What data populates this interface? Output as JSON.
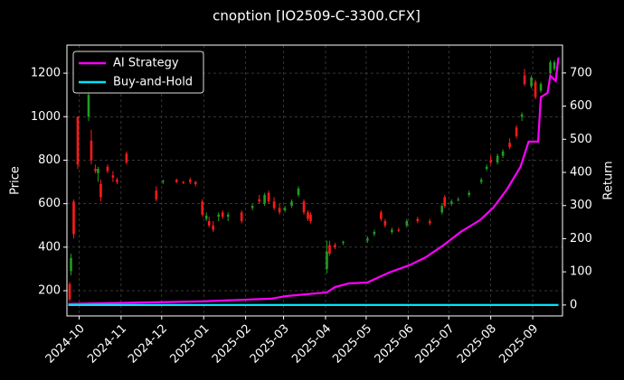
{
  "chart_data": {
    "type": "candlestick",
    "title": "cnoption [IO2509-C-3300.CFX]",
    "ylabel": "Price",
    "y2label": "Return",
    "grid": true,
    "legend": "upper left",
    "up_color": "#1f9e1f",
    "down_color": "#ff1a1a",
    "xlim": [
      -9,
      357
    ],
    "xticks": [
      {
        "value": 0,
        "label": "2024-10"
      },
      {
        "value": 31,
        "label": "2024-11"
      },
      {
        "value": 61,
        "label": "2024-12"
      },
      {
        "value": 92,
        "label": "2025-01"
      },
      {
        "value": 123,
        "label": "2025-02"
      },
      {
        "value": 151,
        "label": "2025-03"
      },
      {
        "value": 182,
        "label": "2025-04"
      },
      {
        "value": 212,
        "label": "2025-05"
      },
      {
        "value": 243,
        "label": "2025-06"
      },
      {
        "value": 273,
        "label": "2025-07"
      },
      {
        "value": 304,
        "label": "2025-08"
      },
      {
        "value": 335,
        "label": "2025-09"
      }
    ],
    "ylim": [
      84,
      1329
    ],
    "yticks": [
      200,
      400,
      600,
      800,
      1000,
      1200
    ],
    "y2lim": [
      -33,
      784
    ],
    "y2ticks": [
      0,
      100,
      200,
      300,
      400,
      500,
      600,
      700
    ],
    "candles": {
      "x": [
        -7,
        -6,
        -4,
        -1,
        7,
        9,
        12,
        14,
        16,
        21,
        25,
        28,
        35,
        57,
        62,
        72,
        77,
        82,
        86,
        91,
        94,
        96,
        99,
        103,
        106,
        110,
        120,
        128,
        133,
        137,
        140,
        144,
        148,
        152,
        157,
        162,
        166,
        169,
        171,
        183,
        185,
        189,
        195,
        213,
        218,
        223,
        226,
        231,
        236,
        242,
        250,
        259,
        268,
        270,
        275,
        280,
        288,
        297,
        301,
        304,
        309,
        313,
        318,
        323,
        327,
        329,
        334,
        337,
        341,
        348,
        351
      ],
      "open": [
        230,
        290,
        610,
        1000,
        1000,
        890,
        760,
        740,
        690,
        770,
        730,
        710,
        830,
        660,
        700,
        710,
        700,
        710,
        700,
        610,
        530,
        520,
        500,
        540,
        560,
        540,
        560,
        580,
        620,
        600,
        650,
        610,
        580,
        570,
        590,
        640,
        610,
        560,
        550,
        300,
        410,
        410,
        420,
        430,
        460,
        560,
        520,
        470,
        480,
        500,
        530,
        520,
        560,
        630,
        600,
        620,
        640,
        700,
        760,
        800,
        790,
        820,
        880,
        950,
        1000,
        1190,
        1140,
        1160,
        1120,
        1200,
        1220
      ],
      "high": [
        240,
        370,
        620,
        1000,
        1150,
        940,
        780,
        770,
        710,
        780,
        750,
        720,
        840,
        680,
        710,
        715,
        705,
        720,
        705,
        620,
        560,
        540,
        520,
        560,
        570,
        560,
        570,
        600,
        640,
        650,
        660,
        630,
        600,
        590,
        620,
        680,
        620,
        570,
        560,
        430,
        430,
        420,
        430,
        450,
        480,
        570,
        530,
        490,
        490,
        530,
        540,
        530,
        600,
        640,
        620,
        630,
        660,
        720,
        780,
        820,
        830,
        850,
        900,
        960,
        1020,
        1220,
        1190,
        1170,
        1160,
        1260,
        1260
      ],
      "low": [
        150,
        270,
        440,
        760,
        980,
        780,
        740,
        700,
        610,
        740,
        700,
        690,
        780,
        610,
        690,
        695,
        690,
        690,
        680,
        540,
        520,
        490,
        470,
        520,
        530,
        520,
        510,
        570,
        600,
        590,
        600,
        570,
        550,
        560,
        580,
        630,
        550,
        520,
        510,
        280,
        360,
        390,
        410,
        420,
        450,
        520,
        490,
        460,
        470,
        490,
        510,
        500,
        550,
        580,
        590,
        610,
        630,
        690,
        750,
        780,
        780,
        810,
        850,
        900,
        980,
        1140,
        1130,
        1080,
        1110,
        1190,
        1210
      ],
      "close": [
        160,
        350,
        460,
        780,
        1100,
        800,
        750,
        760,
        630,
        750,
        720,
        700,
        790,
        620,
        705,
        700,
        695,
        700,
        690,
        550,
        545,
        500,
        480,
        550,
        540,
        550,
        520,
        590,
        610,
        640,
        610,
        580,
        560,
        580,
        610,
        670,
        560,
        530,
        520,
        380,
        370,
        400,
        425,
        440,
        470,
        530,
        500,
        480,
        475,
        520,
        520,
        510,
        590,
        590,
        610,
        620,
        650,
        710,
        770,
        790,
        820,
        840,
        860,
        910,
        1010,
        1150,
        1180,
        1090,
        1150,
        1250,
        1250
      ]
    },
    "series": [
      {
        "name": "AI Strategy",
        "color": "#ff00ff",
        "axis": "y2",
        "x": [
          -8,
          91,
          142,
          153,
          183,
          189,
          199,
          213,
          229,
          244,
          256,
          269,
          282,
          296,
          306,
          316,
          326,
          332,
          339,
          341,
          346,
          348,
          352,
          354
        ],
        "values": [
          3,
          11,
          19,
          27,
          38,
          54,
          65,
          68,
          98,
          120,
          144,
          180,
          221,
          256,
          294,
          349,
          417,
          493,
          493,
          627,
          640,
          692,
          676,
          747
        ]
      },
      {
        "name": "Buy-and-Hold",
        "color": "#00e5ff",
        "axis": "y2",
        "x": [
          -8,
          354
        ],
        "values": [
          0,
          0
        ]
      }
    ]
  }
}
